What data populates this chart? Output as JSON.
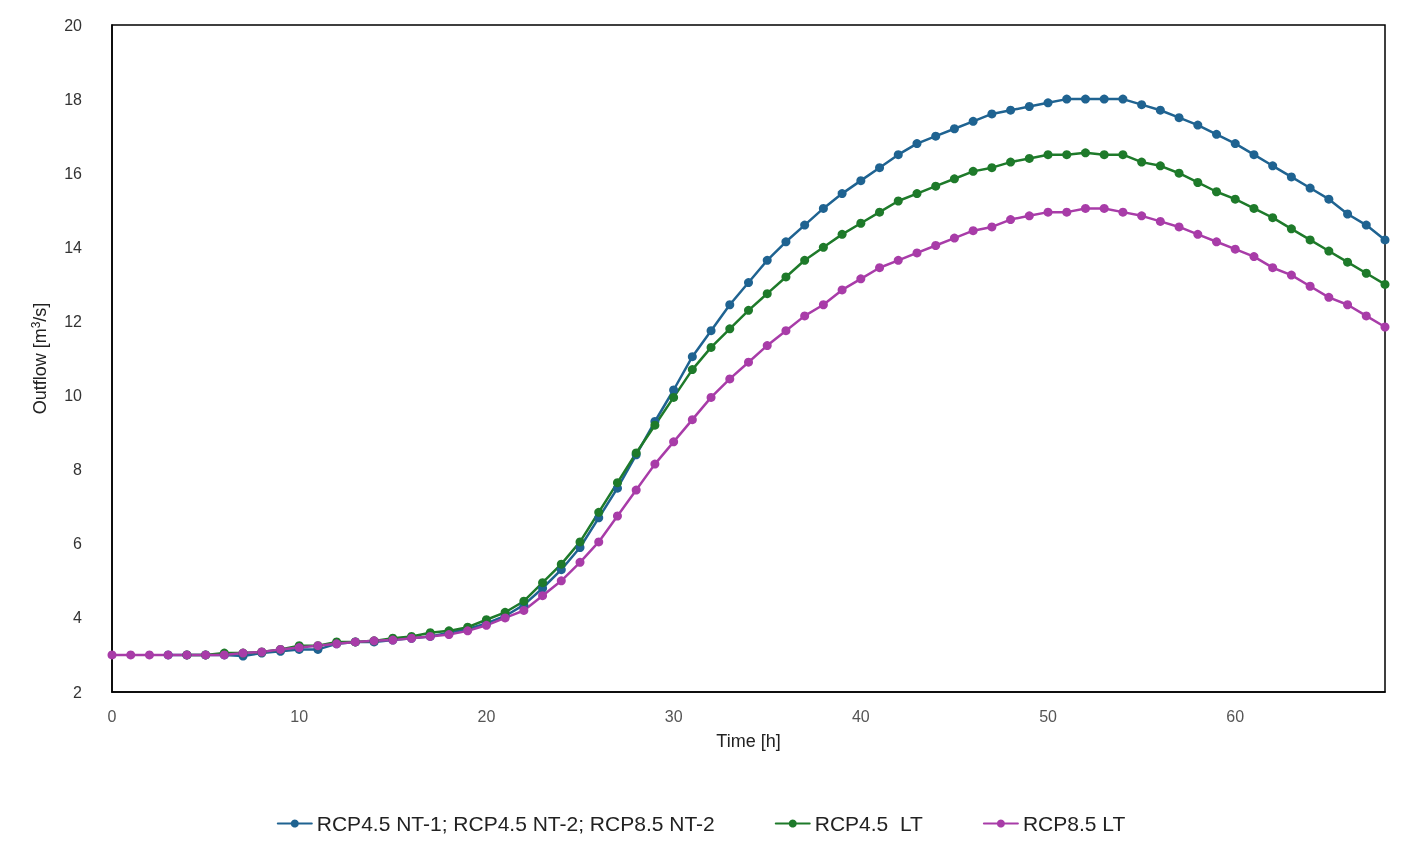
{
  "chart_data": {
    "type": "line",
    "xlabel": "Time [h]",
    "ylabel": "Outflow [m$^{3}$/s]",
    "x": [
      0,
      1,
      2,
      3,
      4,
      5,
      6,
      7,
      8,
      9,
      10,
      11,
      12,
      13,
      14,
      15,
      16,
      17,
      18,
      19,
      20,
      21,
      22,
      23,
      24,
      25,
      26,
      27,
      28,
      29,
      30,
      31,
      32,
      33,
      34,
      35,
      36,
      37,
      38,
      39,
      40,
      41,
      42,
      43,
      44,
      45,
      46,
      47,
      48,
      49,
      50,
      51,
      52,
      53,
      54,
      55,
      56,
      57,
      58,
      59,
      60,
      61,
      62,
      63,
      64,
      65,
      66,
      67,
      68
    ],
    "xlim": [
      0,
      68
    ],
    "xticks": [
      0,
      10,
      20,
      30,
      40,
      50,
      60
    ],
    "ylim": [
      2,
      20
    ],
    "yticks": [
      2,
      4,
      6,
      8,
      10,
      12,
      14,
      16,
      18,
      20
    ],
    "grid": false,
    "legend": "bottom",
    "marker": "circle",
    "line_style": "solid",
    "series": [
      {
        "name": "RCP4.5 NT-1; RCP4.5 NT-2; RCP8.5 NT-2",
        "color": "#1f6391",
        "values": [
          null,
          null,
          null,
          3.0,
          3.0,
          3.0,
          3.0,
          2.97,
          3.05,
          3.1,
          3.15,
          3.15,
          3.3,
          3.35,
          3.35,
          3.4,
          3.45,
          3.5,
          3.6,
          3.7,
          3.85,
          4.05,
          4.35,
          4.8,
          5.3,
          5.9,
          6.7,
          7.5,
          8.4,
          9.3,
          10.15,
          11.05,
          11.75,
          12.45,
          13.05,
          13.65,
          14.15,
          14.6,
          15.05,
          15.45,
          15.8,
          16.15,
          16.5,
          16.8,
          17.0,
          17.2,
          17.4,
          17.6,
          17.7,
          17.8,
          17.9,
          18.0,
          18.0,
          18.0,
          18.0,
          17.85,
          17.7,
          17.5,
          17.3,
          17.05,
          16.8,
          16.5,
          16.2,
          15.9,
          15.6,
          15.3,
          14.9,
          14.6,
          14.2
        ]
      },
      {
        "name": "RCP4.5  LT",
        "color": "#1e7a2a",
        "values": [
          null,
          null,
          null,
          null,
          3.0,
          3.0,
          3.05,
          3.05,
          3.08,
          3.15,
          3.25,
          3.25,
          3.35,
          3.35,
          3.38,
          3.45,
          3.5,
          3.6,
          3.65,
          3.75,
          3.95,
          4.15,
          4.45,
          4.95,
          5.45,
          6.05,
          6.85,
          7.65,
          8.45,
          9.2,
          9.95,
          10.7,
          11.3,
          11.8,
          12.3,
          12.75,
          13.2,
          13.65,
          14.0,
          14.35,
          14.65,
          14.95,
          15.25,
          15.45,
          15.65,
          15.85,
          16.05,
          16.15,
          16.3,
          16.4,
          16.5,
          16.5,
          16.55,
          16.5,
          16.5,
          16.3,
          16.2,
          16.0,
          15.75,
          15.5,
          15.3,
          15.05,
          14.8,
          14.5,
          14.2,
          13.9,
          13.6,
          13.3,
          13.0
        ]
      },
      {
        "name": "RCP8.5 LT",
        "color": "#a83ca8",
        "values": [
          3.0,
          3.0,
          3.0,
          3.0,
          3.0,
          3.0,
          3.0,
          3.05,
          3.08,
          3.15,
          3.2,
          3.25,
          3.3,
          3.35,
          3.38,
          3.4,
          3.45,
          3.5,
          3.55,
          3.65,
          3.8,
          4.0,
          4.2,
          4.6,
          5.0,
          5.5,
          6.05,
          6.75,
          7.45,
          8.15,
          8.75,
          9.35,
          9.95,
          10.45,
          10.9,
          11.35,
          11.75,
          12.15,
          12.45,
          12.85,
          13.15,
          13.45,
          13.65,
          13.85,
          14.05,
          14.25,
          14.45,
          14.55,
          14.75,
          14.85,
          14.95,
          14.95,
          15.05,
          15.05,
          14.95,
          14.85,
          14.7,
          14.55,
          14.35,
          14.15,
          13.95,
          13.75,
          13.45,
          13.25,
          12.95,
          12.65,
          12.45,
          12.15,
          11.85
        ]
      }
    ]
  }
}
